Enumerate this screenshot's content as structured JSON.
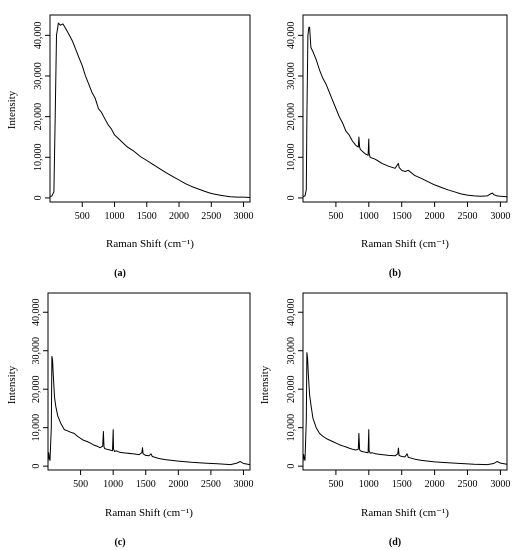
{
  "chart_data": [
    {
      "type": "line",
      "panel_label": "(a)",
      "xlabel": "Raman Shift (cm⁻¹)",
      "ylabel": "Intensity",
      "xlim": [
        0,
        3100
      ],
      "ylim": [
        -1000,
        45000
      ],
      "xticks": [
        500,
        1000,
        1500,
        2000,
        2500,
        3000
      ],
      "yticks": [
        0,
        10000,
        20000,
        30000,
        40000
      ],
      "ytick_labels": [
        "0",
        "10,000",
        "20,000",
        "30,000",
        "40,000"
      ],
      "series": [
        {
          "x": [
            0,
            30,
            60,
            80,
            100,
            130,
            160,
            200,
            250,
            300,
            350,
            400,
            450,
            500,
            550,
            600,
            650,
            700,
            750,
            800,
            850,
            900,
            950,
            1000,
            1100,
            1200,
            1300,
            1400,
            1500,
            1600,
            1700,
            1800,
            1900,
            2000,
            2100,
            2200,
            2300,
            2400,
            2500,
            2600,
            2700,
            2800,
            2900,
            3000,
            3100
          ],
          "y": [
            300,
            500,
            1500,
            20000,
            40000,
            43000,
            42500,
            42800,
            41500,
            40000,
            38500,
            36500,
            34500,
            32500,
            30000,
            28000,
            26000,
            24500,
            22000,
            21000,
            19500,
            18000,
            17000,
            15500,
            14000,
            12500,
            11500,
            10200,
            9200,
            8200,
            7200,
            6200,
            5300,
            4400,
            3500,
            2800,
            2200,
            1600,
            1100,
            800,
            500,
            300,
            200,
            200,
            100
          ]
        }
      ]
    },
    {
      "type": "line",
      "panel_label": "(b)",
      "xlabel": "Raman Shift (cm⁻¹)",
      "ylabel": "",
      "xlim": [
        0,
        3100
      ],
      "ylim": [
        -1000,
        45000
      ],
      "xticks": [
        500,
        1000,
        1500,
        2000,
        2500,
        3000
      ],
      "yticks": [
        0,
        10000,
        20000,
        30000,
        40000
      ],
      "ytick_labels": [
        "0",
        "10,000",
        "20,000",
        "30,000",
        "40,000"
      ],
      "series": [
        {
          "x": [
            0,
            30,
            50,
            60,
            75,
            90,
            100,
            120,
            150,
            200,
            250,
            300,
            350,
            400,
            450,
            500,
            550,
            600,
            650,
            700,
            750,
            800,
            840,
            850,
            860,
            870,
            900,
            950,
            990,
            1000,
            1005,
            1020,
            1100,
            1200,
            1300,
            1400,
            1450,
            1460,
            1500,
            1550,
            1600,
            1700,
            1800,
            1900,
            2000,
            2100,
            2200,
            2300,
            2400,
            2500,
            2600,
            2700,
            2800,
            2850,
            2880,
            2900,
            2950,
            3000,
            3100
          ],
          "y": [
            300,
            500,
            2000,
            20000,
            40000,
            42000,
            42000,
            37000,
            36000,
            34000,
            31500,
            29500,
            28000,
            26000,
            24000,
            22000,
            20000,
            18500,
            16500,
            15500,
            14000,
            13000,
            12500,
            15000,
            12500,
            12000,
            11500,
            10800,
            10500,
            14500,
            11000,
            10000,
            9500,
            8500,
            7800,
            7300,
            8500,
            7500,
            6800,
            6500,
            6800,
            5500,
            4800,
            4000,
            3200,
            2600,
            2000,
            1500,
            1000,
            700,
            500,
            400,
            500,
            1000,
            1200,
            800,
            500,
            400,
            300
          ]
        }
      ]
    },
    {
      "type": "line",
      "panel_label": "(c)",
      "xlabel": "Raman Shift (cm⁻¹)",
      "ylabel": "Intensity",
      "xlim": [
        0,
        3100
      ],
      "ylim": [
        -1000,
        45000
      ],
      "xticks": [
        500,
        1000,
        1500,
        2000,
        2500,
        3000
      ],
      "yticks": [
        0,
        10000,
        20000,
        30000,
        40000
      ],
      "ytick_labels": [
        "0",
        "10,000",
        "20,000",
        "30,000",
        "40,000"
      ],
      "series": [
        {
          "x": [
            0,
            10,
            20,
            30,
            50,
            60,
            70,
            80,
            100,
            120,
            150,
            200,
            250,
            300,
            350,
            400,
            450,
            500,
            550,
            600,
            650,
            700,
            750,
            800,
            840,
            850,
            860,
            870,
            900,
            950,
            990,
            1000,
            1005,
            1020,
            1050,
            1100,
            1150,
            1200,
            1300,
            1400,
            1440,
            1450,
            1460,
            1500,
            1550,
            1580,
            1600,
            1700,
            1800,
            1900,
            2000,
            2200,
            2400,
            2600,
            2800,
            2900,
            2950,
            3000,
            3100
          ],
          "y": [
            1000,
            3500,
            2000,
            1500,
            10000,
            28500,
            27500,
            24000,
            18000,
            15500,
            13000,
            11000,
            9500,
            9200,
            8800,
            8500,
            7800,
            7200,
            6700,
            6400,
            6000,
            5500,
            5200,
            4800,
            5200,
            9000,
            5000,
            4600,
            4400,
            4200,
            4000,
            9500,
            4500,
            3800,
            4000,
            3600,
            3500,
            3400,
            3200,
            3000,
            3500,
            4800,
            3200,
            2800,
            2700,
            3200,
            2500,
            2000,
            1700,
            1500,
            1300,
            1000,
            800,
            600,
            400,
            800,
            1200,
            700,
            400
          ]
        }
      ]
    },
    {
      "type": "line",
      "panel_label": "(d)",
      "xlabel": "Raman Shift (cm⁻¹)",
      "ylabel": "Intensity",
      "xlim": [
        0,
        3100
      ],
      "ylim": [
        -1000,
        45000
      ],
      "xticks": [
        500,
        1000,
        1500,
        2000,
        2500,
        3000
      ],
      "yticks": [
        0,
        10000,
        20000,
        30000,
        40000
      ],
      "ytick_labels": [
        "0",
        "10,000",
        "20,000",
        "30,000",
        "40,000"
      ],
      "series": [
        {
          "x": [
            0,
            10,
            20,
            30,
            50,
            60,
            70,
            80,
            100,
            120,
            150,
            200,
            250,
            300,
            350,
            400,
            450,
            500,
            550,
            600,
            650,
            700,
            750,
            800,
            840,
            850,
            860,
            870,
            900,
            950,
            990,
            1000,
            1005,
            1020,
            1050,
            1100,
            1150,
            1200,
            1300,
            1400,
            1440,
            1450,
            1460,
            1500,
            1550,
            1580,
            1600,
            1700,
            1800,
            1900,
            2000,
            2200,
            2400,
            2600,
            2800,
            2900,
            2950,
            3000,
            3100
          ],
          "y": [
            1000,
            3000,
            2000,
            1500,
            12000,
            29500,
            28000,
            24000,
            18500,
            16000,
            12500,
            10000,
            8500,
            7800,
            7200,
            6800,
            6400,
            6000,
            5600,
            5300,
            5000,
            4700,
            4400,
            4200,
            4400,
            8500,
            4300,
            4000,
            3800,
            3600,
            3500,
            9500,
            4000,
            3400,
            3500,
            3200,
            3100,
            3000,
            2800,
            2700,
            3200,
            4700,
            2800,
            2500,
            2400,
            3200,
            2300,
            1800,
            1500,
            1300,
            1100,
            900,
            700,
            500,
            400,
            700,
            1200,
            800,
            500
          ]
        }
      ]
    }
  ]
}
